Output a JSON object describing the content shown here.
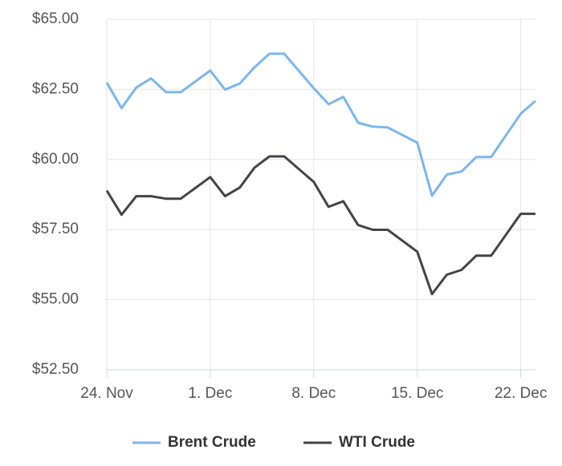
{
  "chart_data": {
    "type": "line",
    "x": [
      "24. Nov",
      "25. Nov",
      "26. Nov",
      "27. Nov",
      "28. Nov",
      "29. Nov",
      "1. Dec",
      "2. Dec",
      "3. Dec",
      "4. Dec",
      "5. Dec",
      "6. Dec",
      "8. Dec",
      "9. Dec",
      "10. Dec",
      "11. Dec",
      "12. Dec",
      "13. Dec",
      "15. Dec",
      "16. Dec",
      "17. Dec",
      "18. Dec",
      "19. Dec",
      "20. Dec",
      "22. Dec",
      "23. Dec"
    ],
    "series": [
      {
        "name": "Brent Crude",
        "color": "#7cb5ec",
        "values": [
          62.74,
          61.83,
          62.57,
          62.89,
          62.4,
          62.4,
          63.17,
          62.49,
          62.71,
          63.29,
          63.77,
          63.77,
          62.54,
          61.97,
          62.23,
          61.31,
          61.17,
          61.14,
          60.6,
          58.71,
          59.46,
          59.57,
          60.09,
          60.09,
          61.63,
          62.09
        ]
      },
      {
        "name": "WTI Crude",
        "color": "#434348",
        "values": [
          58.89,
          58.03,
          58.69,
          58.69,
          58.6,
          58.6,
          59.37,
          58.69,
          59.0,
          59.71,
          60.11,
          60.11,
          59.2,
          58.31,
          58.51,
          57.66,
          57.49,
          57.49,
          56.71,
          55.2,
          55.89,
          56.06,
          56.57,
          56.57,
          58.06,
          58.06
        ]
      }
    ],
    "xlim": [
      "24. Nov",
      "23. Dec"
    ],
    "xticks": [
      "24. Nov",
      "1. Dec",
      "8. Dec",
      "15. Dec",
      "22. Dec"
    ],
    "ylim": [
      52.5,
      65
    ],
    "yticks": [
      {
        "value": 52.5,
        "label": "$52.50"
      },
      {
        "value": 55,
        "label": "$55.00"
      },
      {
        "value": 57.5,
        "label": "$57.50"
      },
      {
        "value": 60,
        "label": "$60.00"
      },
      {
        "value": 62.5,
        "label": "$62.50"
      },
      {
        "value": 65,
        "label": "$65.00"
      }
    ],
    "grid": true,
    "legend": "bottom"
  }
}
